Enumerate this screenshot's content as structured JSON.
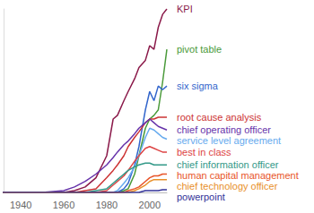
{
  "chart_data": {
    "type": "line",
    "x": [
      1930,
      1940,
      1950,
      1960,
      1965,
      1970,
      1975,
      1980,
      1983,
      1985,
      1988,
      1990,
      1993,
      1995,
      1998,
      2000,
      2002,
      2004,
      2006,
      2008
    ],
    "xlim": [
      1932,
      2008
    ],
    "xticks": [
      1940,
      1960,
      1980,
      2000
    ],
    "ylim": [
      0,
      100
    ],
    "grid": false,
    "tick_labels": "x",
    "series": [
      {
        "name": "KPI",
        "color": "#8b1a4a",
        "values": [
          0,
          0,
          0,
          0,
          1,
          3,
          8,
          20,
          40,
          42,
          50,
          55,
          62,
          68,
          72,
          80,
          78,
          90,
          97,
          100
        ]
      },
      {
        "name": "pivot table",
        "color": "#4a9a3a",
        "values": [
          0,
          0,
          0,
          0,
          0,
          0,
          0,
          0,
          0,
          0,
          1,
          2,
          10,
          20,
          35,
          40,
          42,
          45,
          60,
          78
        ]
      },
      {
        "name": "six sigma",
        "color": "#3366cc",
        "values": [
          0,
          0,
          0,
          0,
          0,
          0,
          0,
          0,
          0,
          0,
          2,
          5,
          15,
          25,
          45,
          55,
          50,
          58,
          56,
          58
        ]
      },
      {
        "name": "root cause analysis",
        "color": "#cc3333",
        "values": [
          0,
          0,
          0,
          0,
          0,
          1,
          2,
          8,
          12,
          15,
          20,
          25,
          30,
          33,
          38,
          40,
          40,
          41,
          41,
          41
        ]
      },
      {
        "name": "chief operating officer",
        "color": "#6633aa",
        "values": [
          0,
          0,
          0,
          1,
          3,
          6,
          10,
          15,
          19,
          22,
          26,
          28,
          32,
          35,
          38,
          40,
          38,
          36,
          35,
          34
        ]
      },
      {
        "name": "service level agreement",
        "color": "#66aaee",
        "values": [
          0,
          0,
          0,
          0,
          0,
          0,
          0,
          0,
          0,
          1,
          5,
          8,
          14,
          20,
          30,
          35,
          34,
          32,
          30,
          29
        ]
      },
      {
        "name": "best in class",
        "color": "#dd4444",
        "values": [
          0,
          0,
          0,
          0,
          0,
          0,
          0,
          1,
          4,
          6,
          9,
          12,
          17,
          20,
          24,
          25,
          24,
          23,
          22,
          22
        ]
      },
      {
        "name": "chief information officer",
        "color": "#339988",
        "values": [
          0,
          0,
          0,
          0,
          0,
          0,
          1,
          2,
          5,
          7,
          10,
          12,
          14,
          15,
          16,
          16,
          15,
          15,
          15,
          15
        ]
      },
      {
        "name": "human capital management",
        "color": "#e8552a",
        "values": [
          0,
          0,
          0,
          0,
          0,
          0,
          0,
          0,
          0,
          0,
          0,
          1,
          2,
          3,
          6,
          8,
          9,
          9,
          10,
          10
        ]
      },
      {
        "name": "chief technology officer",
        "color": "#e8902a",
        "values": [
          0,
          0,
          0,
          0,
          0,
          0,
          0,
          0,
          0,
          0,
          0,
          0,
          1,
          2,
          4,
          6,
          7,
          7,
          7,
          7
        ]
      },
      {
        "name": "powerpoint",
        "color": "#333399",
        "values": [
          0,
          0,
          0,
          0,
          0,
          0,
          0,
          0,
          0,
          0,
          0,
          0,
          0,
          0,
          1,
          1,
          1,
          1,
          1.5,
          1.5
        ]
      }
    ]
  }
}
